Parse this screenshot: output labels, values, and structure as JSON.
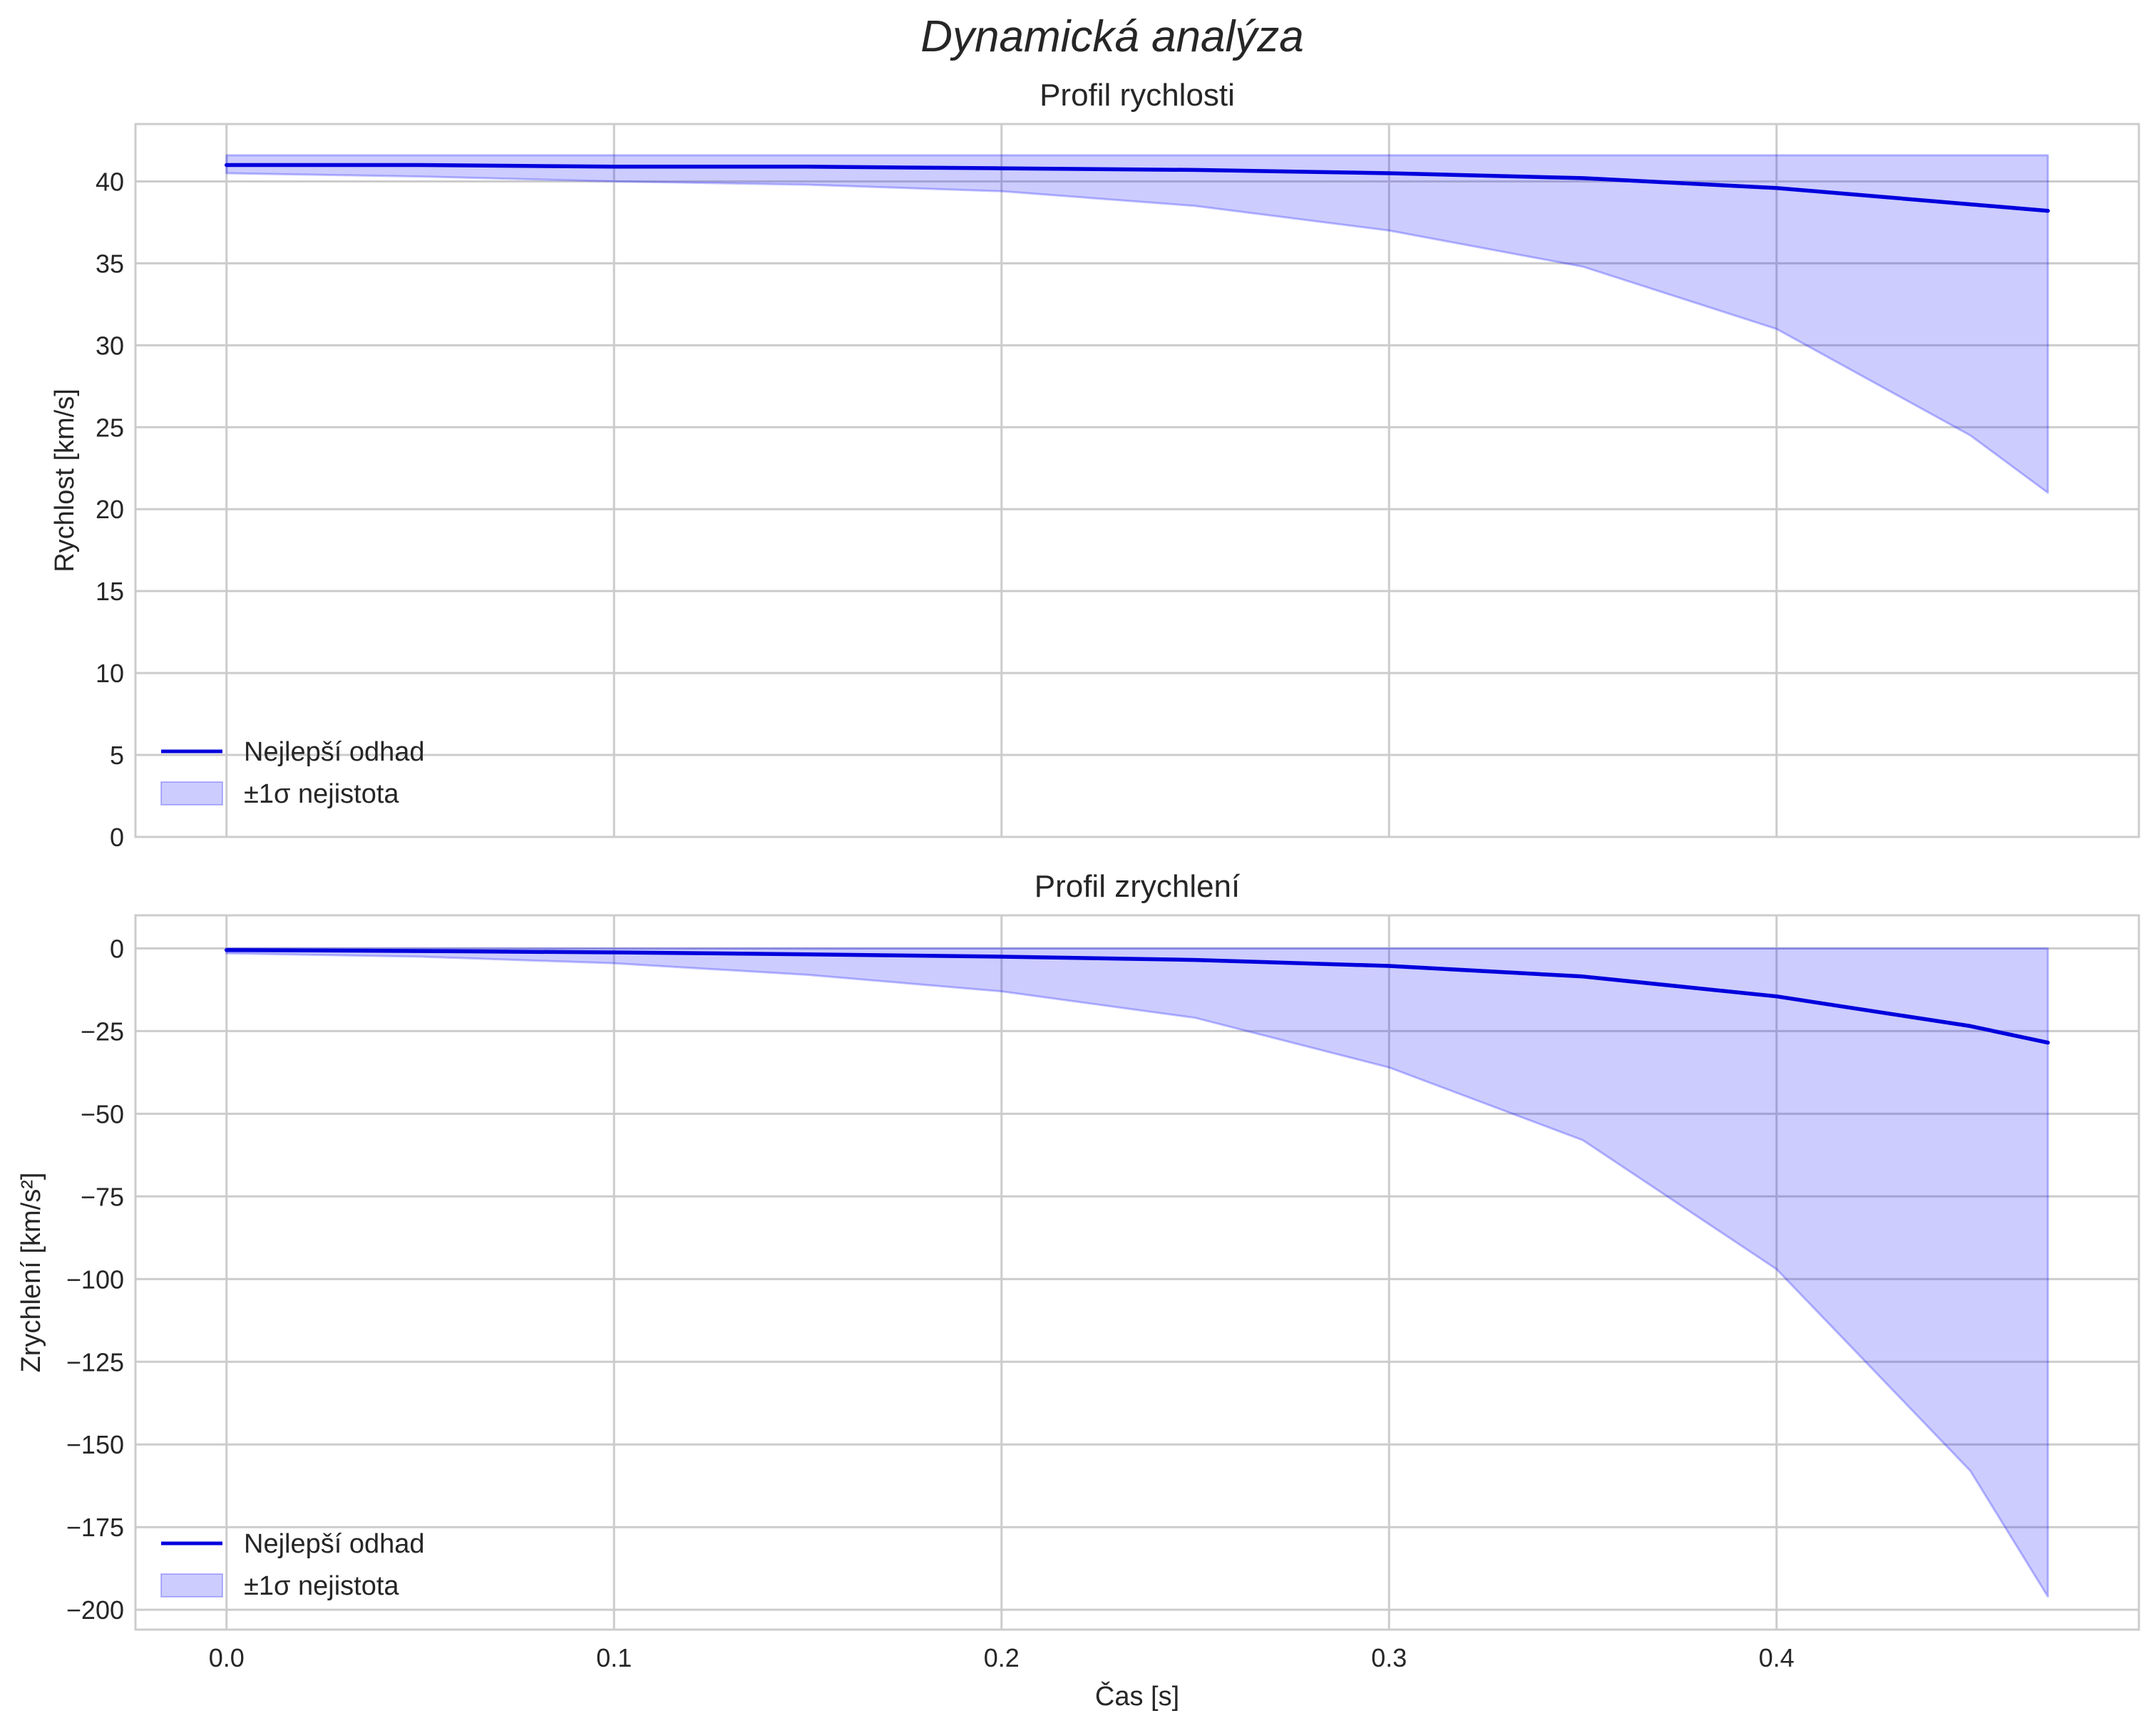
{
  "figure": {
    "suptitle": "Dynamická analýza"
  },
  "chart_data": [
    {
      "type": "line",
      "title": "Profil rychlosti",
      "xlabel": "",
      "ylabel": "Rychlost [km/s]",
      "xlim": [
        -0.0235,
        0.4935
      ],
      "ylim": [
        0,
        43.5
      ],
      "xticks": [
        0.0,
        0.1,
        0.2,
        0.3,
        0.4
      ],
      "xtick_labels_visible": false,
      "yticks": [
        0,
        5,
        10,
        15,
        20,
        25,
        30,
        35,
        40
      ],
      "ytick_labels": [
        "0",
        "5",
        "10",
        "15",
        "20",
        "25",
        "30",
        "35",
        "40"
      ],
      "grid": true,
      "legend_position": "lower-left",
      "series": [
        {
          "name": "Nejlepší odhad",
          "kind": "line",
          "color": "#0000dd",
          "x": [
            0.0,
            0.05,
            0.1,
            0.15,
            0.2,
            0.25,
            0.3,
            0.35,
            0.4,
            0.45,
            0.47
          ],
          "values": [
            41.0,
            41.0,
            40.9,
            40.9,
            40.8,
            40.7,
            40.5,
            40.2,
            39.6,
            38.6,
            38.2
          ]
        },
        {
          "name": "±1σ nejistota",
          "kind": "band",
          "color": "#0000ff",
          "x": [
            0.0,
            0.05,
            0.1,
            0.15,
            0.2,
            0.25,
            0.3,
            0.35,
            0.4,
            0.45,
            0.47
          ],
          "upper": [
            41.6,
            41.6,
            41.6,
            41.6,
            41.6,
            41.6,
            41.6,
            41.6,
            41.6,
            41.6,
            41.6
          ],
          "lower": [
            40.5,
            40.3,
            40.0,
            39.8,
            39.4,
            38.5,
            37.0,
            34.8,
            31.0,
            24.5,
            21.0
          ]
        }
      ]
    },
    {
      "type": "line",
      "title": "Profil zrychlení",
      "xlabel": "Čas [s]",
      "ylabel": "Zrychlení [km/s²]",
      "xlim": [
        -0.0235,
        0.4935
      ],
      "ylim": [
        -206,
        10
      ],
      "xticks": [
        0.0,
        0.1,
        0.2,
        0.3,
        0.4
      ],
      "xtick_labels": [
        "0.0",
        "0.1",
        "0.2",
        "0.3",
        "0.4"
      ],
      "yticks": [
        0,
        -25,
        -50,
        -75,
        -100,
        -125,
        -150,
        -175,
        -200
      ],
      "ytick_labels": [
        "0",
        "−25",
        "−50",
        "−75",
        "−100",
        "−125",
        "−150",
        "−175",
        "−200"
      ],
      "grid": true,
      "legend_position": "lower-left",
      "series": [
        {
          "name": "Nejlepší odhad",
          "kind": "line",
          "color": "#0000dd",
          "x": [
            0.0,
            0.05,
            0.1,
            0.15,
            0.2,
            0.25,
            0.3,
            0.35,
            0.4,
            0.45,
            0.47
          ],
          "values": [
            -0.5,
            -0.8,
            -1.2,
            -1.8,
            -2.5,
            -3.5,
            -5.3,
            -8.5,
            -14.5,
            -23.5,
            -28.5
          ]
        },
        {
          "name": "±1σ nejistota",
          "kind": "band",
          "color": "#0000ff",
          "x": [
            0.0,
            0.05,
            0.1,
            0.15,
            0.2,
            0.25,
            0.3,
            0.35,
            0.4,
            0.45,
            0.47
          ],
          "upper": [
            0,
            0,
            0,
            0,
            0,
            0,
            0,
            0,
            0,
            0,
            0
          ],
          "lower": [
            -1.5,
            -2.5,
            -4.5,
            -8.0,
            -13.0,
            -21.0,
            -36.0,
            -58.0,
            -97.0,
            -158.0,
            -196.0
          ]
        }
      ]
    }
  ]
}
